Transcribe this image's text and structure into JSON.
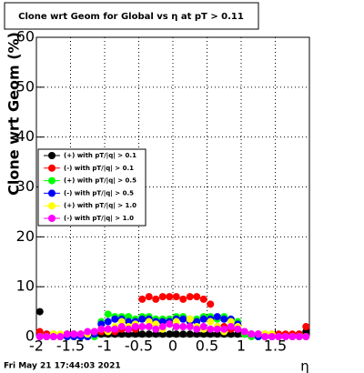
{
  "chart_data": {
    "type": "scatter",
    "title": "Clone wrt Geom for Global vs  η at pT > 0.11",
    "y_label": "Clone wrt Geom (%)",
    "x_label": "η",
    "timestamp": "Fri May 21 17:44:03 2021",
    "xlim": [
      -2,
      2
    ],
    "ylim": [
      0,
      60
    ],
    "xticks": [
      -2,
      -1.5,
      -1,
      -0.5,
      0,
      0.5,
      1,
      1.5
    ],
    "yticks": [
      0,
      10,
      20,
      30,
      40,
      50,
      60
    ],
    "grid": true,
    "x": [
      -1.95,
      -1.85,
      -1.75,
      -1.65,
      -1.55,
      -1.45,
      -1.35,
      -1.25,
      -1.15,
      -1.05,
      -0.95,
      -0.85,
      -0.75,
      -0.65,
      -0.55,
      -0.45,
      -0.35,
      -0.25,
      -0.15,
      -0.05,
      0.05,
      0.15,
      0.25,
      0.35,
      0.45,
      0.55,
      0.65,
      0.75,
      0.85,
      0.95,
      1.05,
      1.15,
      1.25,
      1.35,
      1.45,
      1.55,
      1.65,
      1.75,
      1.85,
      1.95
    ],
    "series": [
      {
        "name": "(+) with pT/|q| > 0.1",
        "color": "#000000",
        "values": [
          5,
          0.5,
          0.3,
          0.3,
          0.5,
          0.5,
          0.5,
          0.5,
          0.5,
          0.5,
          0.5,
          0.5,
          0.5,
          0.5,
          0.5,
          0.5,
          0.5,
          0.5,
          0.5,
          0.5,
          0.5,
          0.5,
          0.5,
          0.5,
          0.5,
          0.5,
          0.5,
          0.5,
          0.5,
          0.5,
          0.5,
          0.5,
          0.5,
          0.3,
          0.3,
          0.3,
          0.3,
          0.3,
          0.5,
          1
        ]
      },
      {
        "name": "(-) with pT/|q| > 0.1",
        "color": "#ff0000",
        "values": [
          1,
          0.5,
          0.5,
          0.3,
          0.5,
          0.5,
          0.5,
          0.5,
          1,
          1,
          1.5,
          1,
          1.5,
          1.5,
          1.5,
          7.5,
          8,
          7.5,
          8,
          8,
          8,
          7.5,
          8,
          8,
          7.5,
          6.5,
          2,
          2,
          1.5,
          1.5,
          1,
          0.5,
          0.5,
          0.5,
          0.5,
          0.5,
          0.5,
          0.5,
          0.5,
          2
        ]
      },
      {
        "name": "(+) with pT/|q| > 0.5",
        "color": "#00ff00",
        "values": [
          0,
          0,
          0,
          0,
          0,
          0,
          0,
          0,
          0,
          3,
          4.5,
          4,
          4,
          4,
          3.5,
          4,
          4,
          3.5,
          3.5,
          3.5,
          4,
          4,
          3.5,
          3.5,
          4,
          4,
          3.5,
          4,
          3.5,
          3,
          0.5,
          0,
          0,
          0,
          0,
          0,
          0,
          0,
          0,
          0
        ]
      },
      {
        "name": "(-) with pT/|q| > 0.5",
        "color": "#0000ff",
        "values": [
          0,
          0,
          0,
          0,
          0,
          0,
          0,
          0,
          0.5,
          2.5,
          3,
          3.5,
          3.5,
          3,
          3,
          3.5,
          3.5,
          3,
          3,
          3,
          3.5,
          3.5,
          3,
          3,
          3.5,
          3.5,
          4,
          3.5,
          3.5,
          2.5,
          1,
          0.5,
          0,
          0,
          0,
          0,
          0,
          0,
          0,
          0
        ]
      },
      {
        "name": "(+) with pT/|q| > 1.0",
        "color": "#ffff00",
        "values": [
          0,
          0,
          0.5,
          0.5,
          0.5,
          0.5,
          0.5,
          0.5,
          1,
          1.5,
          1,
          2,
          3,
          2,
          2.5,
          2,
          3,
          2.5,
          1.5,
          2.5,
          3,
          2,
          3.5,
          2,
          1.5,
          3,
          2,
          1,
          3,
          2,
          1,
          0.5,
          0.5,
          0.5,
          0.5,
          0,
          0,
          0,
          0,
          0
        ]
      },
      {
        "name": "(-) with pT/|q| > 1.0",
        "color": "#ff00ff",
        "values": [
          0,
          0,
          0,
          0,
          0.5,
          0.5,
          0.5,
          1,
          1,
          1.5,
          1.5,
          1.5,
          2,
          1.5,
          2,
          2,
          2,
          1.5,
          2,
          2.5,
          2,
          2,
          2,
          1.5,
          2,
          1.5,
          1.5,
          1.5,
          2,
          1.5,
          1,
          0.5,
          0.5,
          0,
          0,
          0,
          0,
          0,
          0,
          0
        ]
      }
    ]
  }
}
